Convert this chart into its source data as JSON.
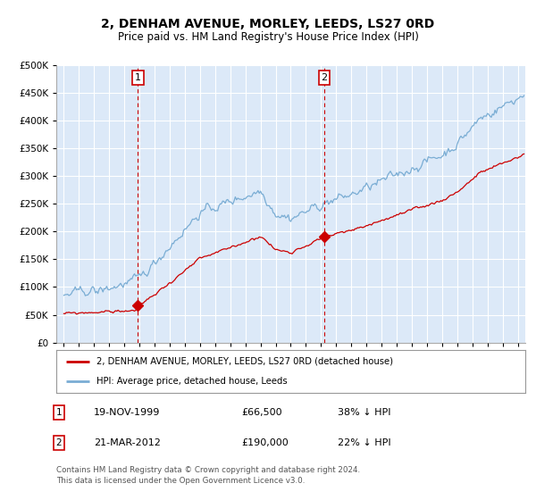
{
  "title": "2, DENHAM AVENUE, MORLEY, LEEDS, LS27 0RD",
  "subtitle": "Price paid vs. HM Land Registry's House Price Index (HPI)",
  "title_fontsize": 10,
  "subtitle_fontsize": 8.5,
  "bg_color": "#dce9f8",
  "outer_bg_color": "#ffffff",
  "grid_color": "#ffffff",
  "red_color": "#cc0000",
  "blue_color": "#7aadd4",
  "sale1_date": 1999.89,
  "sale1_price": 66500,
  "sale2_date": 2012.22,
  "sale2_price": 190000,
  "legend_line1": "2, DENHAM AVENUE, MORLEY, LEEDS, LS27 0RD (detached house)",
  "legend_line2": "HPI: Average price, detached house, Leeds",
  "table_row1": [
    "1",
    "19-NOV-1999",
    "£66,500",
    "38% ↓ HPI"
  ],
  "table_row2": [
    "2",
    "21-MAR-2012",
    "£190,000",
    "22% ↓ HPI"
  ],
  "footer": "Contains HM Land Registry data © Crown copyright and database right 2024.\nThis data is licensed under the Open Government Licence v3.0.",
  "ylim": [
    0,
    500000
  ],
  "xlim_start": 1994.5,
  "xlim_end": 2025.5,
  "yticks": [
    0,
    50000,
    100000,
    150000,
    200000,
    250000,
    300000,
    350000,
    400000,
    450000,
    500000
  ]
}
